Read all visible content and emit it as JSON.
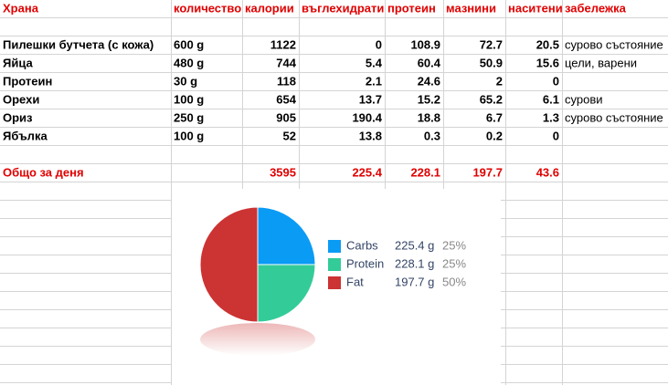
{
  "table": {
    "header": [
      "Храна",
      "количество",
      "калории",
      "въглехидрати",
      "протеин",
      "мазнини",
      "наситени",
      "забележка"
    ],
    "rows": [
      [
        "Пилешки бутчета (с кожа)",
        "600 g",
        1122,
        0,
        108.9,
        72.7,
        20.5,
        "сурово състояние"
      ],
      [
        "Яйца",
        "480 g",
        744,
        5.4,
        60.4,
        50.9,
        15.6,
        "цели, варени"
      ],
      [
        "Протеин",
        "30 g",
        118,
        2.1,
        24.6,
        2,
        0,
        null
      ],
      [
        "Орехи",
        "100 g",
        654,
        13.7,
        15.2,
        65.2,
        6.1,
        "сурови"
      ],
      [
        "Ориз",
        "250 g",
        905,
        190.4,
        18.8,
        6.7,
        1.3,
        "сурово състояние"
      ],
      [
        "Ябълка",
        "100 g",
        52,
        13.8,
        0.3,
        0.2,
        0,
        null
      ]
    ],
    "total": [
      "Общо за деня",
      null,
      3595,
      225.4,
      228.1,
      197.7,
      43.6,
      null
    ]
  },
  "chart_data": {
    "type": "pie",
    "categories": [
      "Carbs",
      "Protein",
      "Fat"
    ],
    "amounts": [
      "225.4 g",
      "228.1 g",
      "197.7 g"
    ],
    "values": [
      25,
      25,
      50
    ],
    "value_labels": [
      "25%",
      "25%",
      "50%"
    ],
    "colors": [
      "#0a9bf5",
      "#33cc99",
      "#cc3333"
    ]
  }
}
